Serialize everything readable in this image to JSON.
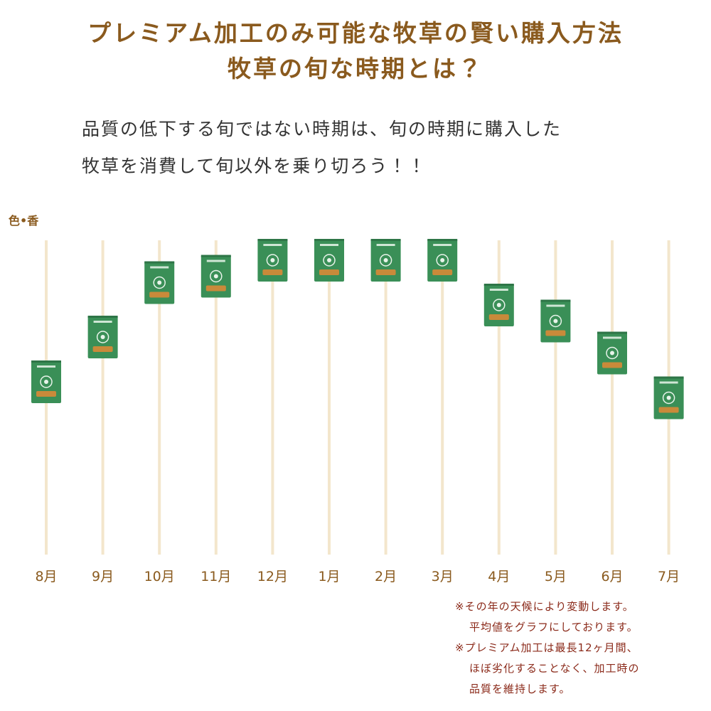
{
  "chart_data": {
    "type": "icon-dot",
    "title": [
      "プレミアム加工のみ可能な牧草の賢い購入方法",
      "牧草の旬な時期とは？"
    ],
    "subtitle": [
      "品質の低下する旬ではない時期は、旬の時期に購入した",
      "牧草を消費して旬以外を乗り切ろう！！"
    ],
    "y_label": "色•香",
    "categories": [
      "8月",
      "9月",
      "10月",
      "11月",
      "12月",
      "1月",
      "2月",
      "3月",
      "4月",
      "5月",
      "6月",
      "7月"
    ],
    "values": [
      54,
      68,
      85,
      87,
      92,
      92,
      92,
      92,
      78,
      73,
      63,
      49
    ],
    "ylim": [
      0,
      100
    ],
    "color": "#3a8f57",
    "notes": [
      "※その年の天候により変動します。",
      "平均値をグラフにしております。",
      "※プレミアム加工は最長12ヶ月間、",
      "ほぼ劣化することなく、加工時の",
      "品質を維持します。"
    ]
  }
}
